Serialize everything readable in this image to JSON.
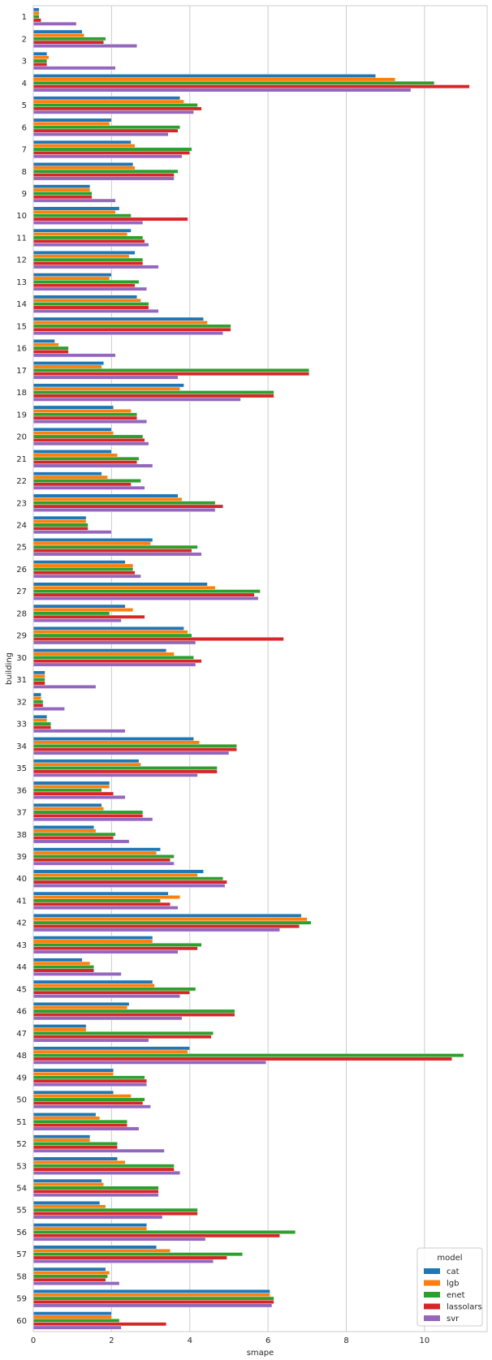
{
  "chart_data": {
    "type": "bar",
    "orientation": "horizontal",
    "xlabel": "smape",
    "ylabel": "building",
    "xlim": [
      0,
      11.6
    ],
    "xticks": [
      0,
      2,
      4,
      6,
      8,
      10
    ],
    "grid": "vertical",
    "legend": {
      "title": "model",
      "placement": "bottom-right"
    },
    "categories": [
      "1",
      "2",
      "3",
      "4",
      "5",
      "6",
      "7",
      "8",
      "9",
      "10",
      "11",
      "12",
      "13",
      "14",
      "15",
      "16",
      "17",
      "18",
      "19",
      "20",
      "21",
      "22",
      "23",
      "24",
      "25",
      "26",
      "27",
      "28",
      "29",
      "30",
      "31",
      "32",
      "33",
      "34",
      "35",
      "36",
      "37",
      "38",
      "39",
      "40",
      "41",
      "42",
      "43",
      "44",
      "45",
      "46",
      "47",
      "48",
      "49",
      "50",
      "51",
      "52",
      "53",
      "54",
      "55",
      "56",
      "57",
      "58",
      "59",
      "60"
    ],
    "series": [
      {
        "name": "cat",
        "color": "#1f77b4",
        "values": [
          0.15,
          1.25,
          0.35,
          8.75,
          3.75,
          2.0,
          2.5,
          2.55,
          1.45,
          2.2,
          2.5,
          2.6,
          2.0,
          2.65,
          4.35,
          0.55,
          1.8,
          3.85,
          2.05,
          2.0,
          2.0,
          1.75,
          3.7,
          1.35,
          3.05,
          2.35,
          4.45,
          2.35,
          3.85,
          3.4,
          0.3,
          0.2,
          0.35,
          4.1,
          2.7,
          1.95,
          1.75,
          1.55,
          3.25,
          4.35,
          3.45,
          6.85,
          3.05,
          1.25,
          3.05,
          2.45,
          1.35,
          4.0,
          2.05,
          2.05,
          1.6,
          1.45,
          2.15,
          1.75,
          1.7,
          2.9,
          3.15,
          1.85,
          6.05,
          2.0
        ]
      },
      {
        "name": "lgb",
        "color": "#ff7f0e",
        "values": [
          0.15,
          1.3,
          0.4,
          9.25,
          3.85,
          1.95,
          2.6,
          2.6,
          1.45,
          2.1,
          2.4,
          2.45,
          1.95,
          2.75,
          4.45,
          0.65,
          1.75,
          3.75,
          2.5,
          2.05,
          2.15,
          1.9,
          3.8,
          1.35,
          3.0,
          2.55,
          4.65,
          2.55,
          3.95,
          3.6,
          0.3,
          0.2,
          0.35,
          4.25,
          2.75,
          1.95,
          1.8,
          1.6,
          3.15,
          4.2,
          3.75,
          7.0,
          3.05,
          1.45,
          3.1,
          2.4,
          1.35,
          3.95,
          2.05,
          2.5,
          1.7,
          1.45,
          2.35,
          1.8,
          1.85,
          2.9,
          3.5,
          1.95,
          6.05,
          2.0
        ]
      },
      {
        "name": "enet",
        "color": "#2ca02c",
        "values": [
          0.15,
          1.85,
          0.35,
          10.25,
          4.2,
          3.75,
          4.05,
          3.7,
          1.5,
          2.5,
          2.8,
          2.8,
          2.7,
          2.95,
          5.05,
          0.9,
          7.05,
          6.15,
          2.65,
          2.8,
          2.7,
          2.75,
          4.65,
          1.4,
          4.2,
          2.55,
          5.8,
          1.95,
          4.05,
          4.1,
          0.3,
          0.25,
          0.45,
          5.2,
          4.7,
          1.75,
          2.8,
          2.1,
          3.6,
          4.85,
          3.25,
          7.1,
          4.3,
          1.55,
          4.15,
          5.15,
          4.6,
          11.0,
          2.85,
          2.85,
          2.4,
          2.15,
          3.6,
          3.2,
          4.2,
          6.7,
          5.35,
          1.9,
          6.15,
          2.2
        ]
      },
      {
        "name": "lassolars",
        "color": "#d62728",
        "values": [
          0.2,
          1.8,
          0.35,
          11.15,
          4.3,
          3.7,
          4.0,
          3.6,
          1.5,
          3.95,
          2.85,
          2.8,
          2.6,
          2.95,
          5.05,
          0.9,
          7.05,
          6.15,
          2.65,
          2.85,
          2.65,
          2.5,
          4.85,
          1.4,
          4.05,
          2.6,
          5.65,
          2.85,
          6.4,
          4.3,
          0.3,
          0.25,
          0.45,
          5.2,
          4.7,
          2.05,
          2.8,
          2.05,
          3.5,
          4.95,
          3.5,
          6.8,
          4.2,
          1.55,
          4.0,
          5.15,
          4.55,
          10.7,
          2.9,
          2.8,
          2.4,
          2.15,
          3.6,
          3.2,
          4.2,
          6.3,
          4.95,
          1.85,
          6.15,
          3.4
        ]
      },
      {
        "name": "svr",
        "color": "#9467bd",
        "values": [
          1.1,
          2.65,
          2.1,
          9.65,
          4.1,
          3.45,
          3.8,
          3.6,
          2.1,
          2.8,
          2.95,
          3.2,
          2.9,
          3.2,
          4.85,
          2.1,
          3.7,
          5.3,
          2.9,
          2.95,
          3.05,
          2.85,
          4.65,
          2.0,
          4.3,
          2.75,
          5.75,
          2.25,
          4.15,
          4.15,
          1.6,
          0.8,
          2.35,
          5.0,
          4.2,
          2.35,
          3.05,
          2.45,
          3.6,
          4.9,
          3.7,
          6.3,
          3.7,
          2.25,
          3.75,
          3.8,
          2.95,
          5.95,
          2.9,
          3.0,
          2.7,
          3.35,
          3.75,
          3.2,
          3.3,
          4.4,
          4.6,
          2.2,
          6.1,
          2.25
        ]
      }
    ]
  }
}
